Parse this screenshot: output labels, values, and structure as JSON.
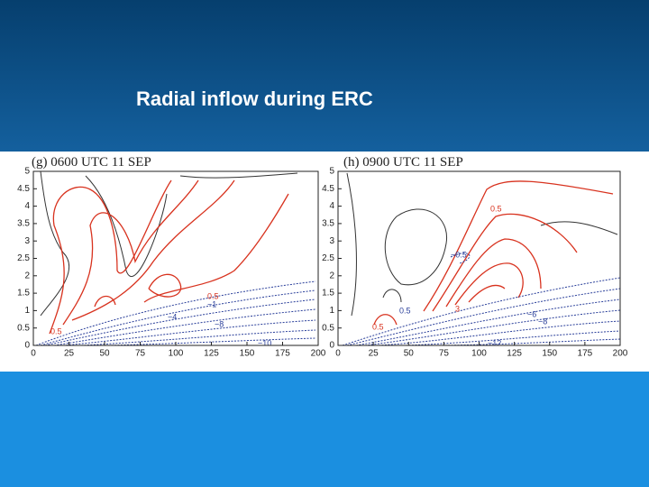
{
  "title": "Radial inflow during ERC",
  "panels": [
    {
      "label": "(g)  0600 UTC 11 SEP",
      "yticks": [
        "0",
        "0.5",
        "1",
        "1.5",
        "2",
        "2.5",
        "3",
        "3.5",
        "4",
        "4.5",
        "5"
      ],
      "xticks": [
        "0",
        "25",
        "50",
        "75",
        "100",
        "125",
        "150",
        "175",
        "200"
      ],
      "contour_labels": [
        "0.5",
        "0.5",
        "−1",
        "−4",
        "−8",
        "−10"
      ]
    },
    {
      "label": "(h)  0900 UTC 11 SEP",
      "yticks": [
        "0",
        "0.5",
        "1",
        "1.5",
        "2",
        "2.5",
        "3",
        "3.5",
        "4",
        "4.5",
        "5"
      ],
      "xticks": [
        "0",
        "25",
        "50",
        "75",
        "100",
        "125",
        "150",
        "175",
        "200"
      ],
      "contour_labels": [
        "0.5",
        "−0.5",
        "0.5",
        "3",
        "−6",
        "−8",
        "−12",
        "0.5"
      ]
    }
  ]
}
